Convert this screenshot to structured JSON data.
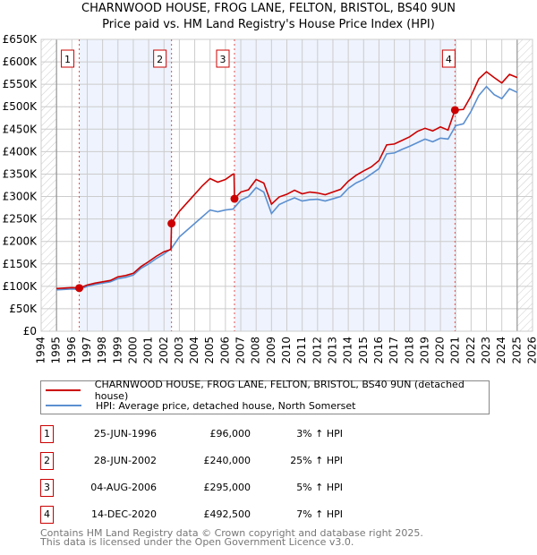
{
  "chart_data": {
    "type": "line",
    "title": "CHARNWOOD HOUSE, FROG LANE, FELTON, BRISTOL, BS40 9UN",
    "subtitle": "Price paid vs. HM Land Registry's House Price Index (HPI)",
    "xlim": [
      1994,
      2026
    ],
    "ylim": [
      0,
      650000
    ],
    "x_ticks": [
      "1994",
      "1995",
      "1996",
      "1997",
      "1998",
      "1999",
      "2000",
      "2001",
      "2002",
      "2003",
      "2004",
      "2005",
      "2006",
      "2007",
      "2008",
      "2009",
      "2010",
      "2011",
      "2012",
      "2013",
      "2014",
      "2015",
      "2016",
      "2017",
      "2018",
      "2019",
      "2020",
      "2021",
      "2022",
      "2023",
      "2024",
      "2025",
      "2026"
    ],
    "y_ticks": [
      "£0",
      "£50K",
      "£100K",
      "£150K",
      "£200K",
      "£250K",
      "£300K",
      "£350K",
      "£400K",
      "£450K",
      "£500K",
      "£550K",
      "£600K",
      "£650K"
    ],
    "grid": true,
    "legend_placement": "below",
    "series": [
      {
        "name": "CHARNWOOD HOUSE, FROG LANE, FELTON, BRISTOL, BS40 9UN (detached house)",
        "color": "#cc0000",
        "points": [
          [
            1995,
            95
          ],
          [
            1995.5,
            96
          ],
          [
            1996,
            97
          ],
          [
            1996.48,
            96
          ],
          [
            1997,
            103
          ],
          [
            1997.5,
            107
          ],
          [
            1998,
            110
          ],
          [
            1998.5,
            113
          ],
          [
            1999,
            121
          ],
          [
            1999.5,
            124
          ],
          [
            2000,
            129
          ],
          [
            2000.5,
            144
          ],
          [
            2001,
            155
          ],
          [
            2001.5,
            167
          ],
          [
            2002,
            177
          ],
          [
            2002.45,
            182
          ],
          [
            2002.49,
            240
          ],
          [
            2002.7,
            252
          ],
          [
            2003,
            267
          ],
          [
            2003.5,
            286
          ],
          [
            2004,
            305
          ],
          [
            2004.5,
            324
          ],
          [
            2005,
            340
          ],
          [
            2005.5,
            332
          ],
          [
            2006,
            338
          ],
          [
            2006.5,
            350
          ],
          [
            2006.56,
            350
          ],
          [
            2006.59,
            295
          ],
          [
            2007,
            310
          ],
          [
            2007.5,
            315
          ],
          [
            2008,
            338
          ],
          [
            2008.5,
            330
          ],
          [
            2009,
            283
          ],
          [
            2009.5,
            299
          ],
          [
            2010,
            305
          ],
          [
            2010.5,
            314
          ],
          [
            2011,
            306
          ],
          [
            2011.5,
            310
          ],
          [
            2012,
            308
          ],
          [
            2012.5,
            304
          ],
          [
            2013,
            310
          ],
          [
            2013.5,
            316
          ],
          [
            2014,
            334
          ],
          [
            2014.5,
            347
          ],
          [
            2015,
            357
          ],
          [
            2015.5,
            366
          ],
          [
            2016,
            380
          ],
          [
            2016.5,
            415
          ],
          [
            2017,
            417
          ],
          [
            2017.5,
            425
          ],
          [
            2018,
            433
          ],
          [
            2018.5,
            445
          ],
          [
            2019,
            452
          ],
          [
            2019.5,
            446
          ],
          [
            2020,
            455
          ],
          [
            2020.5,
            448
          ],
          [
            2020.95,
            492.5
          ],
          [
            2021.5,
            494
          ],
          [
            2022,
            524
          ],
          [
            2022.5,
            562
          ],
          [
            2023,
            578
          ],
          [
            2023.5,
            565
          ],
          [
            2024,
            553
          ],
          [
            2024.5,
            572
          ],
          [
            2025,
            565
          ]
        ]
      },
      {
        "name": "HPI: Average price, detached house, North Somerset",
        "color": "#5b8fd0",
        "points": [
          [
            1995,
            92
          ],
          [
            1995.5,
            93
          ],
          [
            1996,
            94
          ],
          [
            1996.5,
            93
          ],
          [
            1997,
            100
          ],
          [
            1997.5,
            104
          ],
          [
            1998,
            107
          ],
          [
            1998.5,
            110
          ],
          [
            1999,
            117
          ],
          [
            1999.5,
            120
          ],
          [
            2000,
            125
          ],
          [
            2000.5,
            140
          ],
          [
            2001,
            150
          ],
          [
            2001.5,
            162
          ],
          [
            2002,
            172
          ],
          [
            2002.5,
            185
          ],
          [
            2003,
            210
          ],
          [
            2003.5,
            225
          ],
          [
            2004,
            240
          ],
          [
            2004.5,
            255
          ],
          [
            2005,
            270
          ],
          [
            2005.5,
            266
          ],
          [
            2006,
            270
          ],
          [
            2006.5,
            272
          ],
          [
            2007,
            292
          ],
          [
            2007.5,
            300
          ],
          [
            2008,
            320
          ],
          [
            2008.5,
            310
          ],
          [
            2009,
            262
          ],
          [
            2009.5,
            282
          ],
          [
            2010,
            290
          ],
          [
            2010.5,
            297
          ],
          [
            2011,
            290
          ],
          [
            2011.5,
            293
          ],
          [
            2012,
            294
          ],
          [
            2012.5,
            290
          ],
          [
            2013,
            295
          ],
          [
            2013.5,
            300
          ],
          [
            2014,
            318
          ],
          [
            2014.5,
            330
          ],
          [
            2015,
            338
          ],
          [
            2015.5,
            350
          ],
          [
            2016,
            362
          ],
          [
            2016.5,
            395
          ],
          [
            2017,
            397
          ],
          [
            2017.5,
            405
          ],
          [
            2018,
            412
          ],
          [
            2018.5,
            420
          ],
          [
            2019,
            428
          ],
          [
            2019.5,
            422
          ],
          [
            2020,
            430
          ],
          [
            2020.5,
            428
          ],
          [
            2021,
            458
          ],
          [
            2021.5,
            462
          ],
          [
            2022,
            490
          ],
          [
            2022.5,
            525
          ],
          [
            2023,
            545
          ],
          [
            2023.5,
            527
          ],
          [
            2024,
            518
          ],
          [
            2024.5,
            540
          ],
          [
            2025,
            532
          ]
        ]
      }
    ],
    "value_unit": "thousand GBP",
    "sales": [
      {
        "num": "1",
        "x": 1996.48,
        "value": 96,
        "date": "25-JUN-1996",
        "price": "£96,000",
        "hpi": "3% ↑ HPI"
      },
      {
        "num": "2",
        "x": 2002.49,
        "value": 240,
        "date": "28-JUN-2002",
        "price": "£240,000",
        "hpi": "25% ↑ HPI"
      },
      {
        "num": "3",
        "x": 2006.59,
        "value": 295,
        "date": "04-AUG-2006",
        "price": "£295,000",
        "hpi": "5% ↑ HPI"
      },
      {
        "num": "4",
        "x": 2020.95,
        "value": 492.5,
        "date": "14-DEC-2020",
        "price": "£492,500",
        "hpi": "7% ↑ HPI"
      }
    ]
  },
  "footer": {
    "line1": "Contains HM Land Registry data © Crown copyright and database right 2025.",
    "line2": "This data is licensed under the Open Government Licence v3.0."
  }
}
